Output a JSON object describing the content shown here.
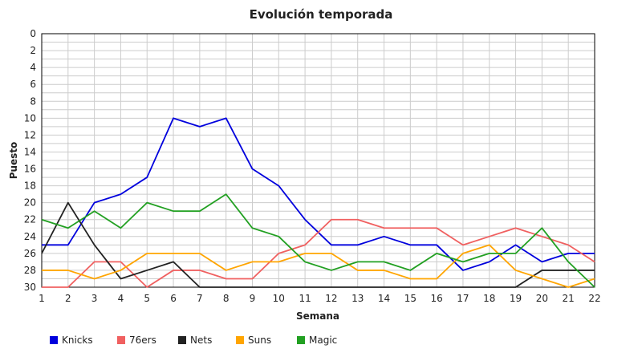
{
  "chart_data": {
    "type": "line",
    "title": "Evolución temporada",
    "xlabel": "Semana",
    "ylabel": "Puesto",
    "x": [
      1,
      2,
      3,
      4,
      5,
      6,
      7,
      8,
      9,
      10,
      11,
      12,
      13,
      14,
      15,
      16,
      17,
      18,
      19,
      20,
      21,
      22
    ],
    "xlim": [
      1,
      22
    ],
    "ylim": [
      0,
      30
    ],
    "y_inverted": true,
    "y_ticks": [
      0,
      2,
      4,
      6,
      8,
      10,
      12,
      14,
      16,
      18,
      20,
      22,
      24,
      26,
      28,
      30
    ],
    "grid": true,
    "legend_position": "bottom-left",
    "series": [
      {
        "name": "Knicks",
        "color": "#0000dd",
        "values": [
          25,
          25,
          20,
          19,
          17,
          10,
          11,
          10,
          16,
          18,
          22,
          25,
          25,
          24,
          25,
          25,
          28,
          27,
          25,
          27,
          26,
          26
        ]
      },
      {
        "name": "76ers",
        "color": "#f06060",
        "values": [
          30,
          30,
          27,
          27,
          30,
          28,
          28,
          29,
          29,
          26,
          25,
          22,
          22,
          23,
          23,
          23,
          25,
          24,
          23,
          24,
          25,
          27
        ]
      },
      {
        "name": "Nets",
        "color": "#222222",
        "values": [
          26,
          20,
          25,
          29,
          28,
          27,
          30,
          30,
          30,
          30,
          30,
          30,
          30,
          30,
          30,
          30,
          30,
          30,
          30,
          28,
          28,
          28
        ]
      },
      {
        "name": "Suns",
        "color": "#ffa500",
        "values": [
          28,
          28,
          29,
          28,
          26,
          26,
          26,
          28,
          27,
          27,
          26,
          26,
          28,
          28,
          29,
          29,
          26,
          25,
          28,
          29,
          30,
          29
        ]
      },
      {
        "name": "Magic",
        "color": "#22a022",
        "values": [
          22,
          23,
          21,
          23,
          20,
          21,
          21,
          19,
          23,
          24,
          27,
          28,
          27,
          27,
          28,
          26,
          27,
          26,
          26,
          23,
          27,
          30
        ]
      }
    ]
  }
}
